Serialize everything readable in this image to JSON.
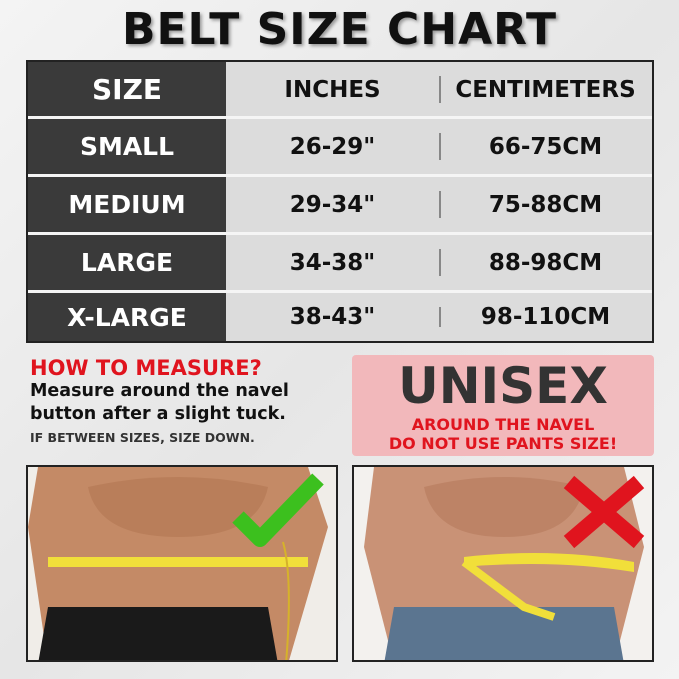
{
  "title": "BELT SIZE CHART",
  "table": {
    "headers": [
      "SIZE",
      "INCHES",
      "CENTIMETERS"
    ],
    "rows": [
      {
        "size": "SMALL",
        "inches": "26-29\"",
        "cm": "66-75CM"
      },
      {
        "size": "MEDIUM",
        "inches": "29-34\"",
        "cm": "75-88CM"
      },
      {
        "size": "LARGE",
        "inches": "34-38\"",
        "cm": "88-98CM"
      },
      {
        "size": "X-LARGE",
        "inches": "38-43\"",
        "cm": "98-110CM"
      }
    ]
  },
  "how_to": {
    "heading": "HOW TO MEASURE?",
    "body_line1": "Measure around the navel",
    "body_line2": "button after a slight tuck.",
    "note": "IF BETWEEN SIZES, SIZE DOWN."
  },
  "unisex": {
    "title": "UNISEX",
    "line1": "AROUND THE NAVEL",
    "line2": "DO NOT USE PANTS SIZE!"
  },
  "photos": [
    {
      "icon": "check-icon",
      "color": "#3cc01e"
    },
    {
      "icon": "cross-icon",
      "color": "#e0141e"
    }
  ],
  "colors": {
    "red": "#e0141e",
    "dark": "#3a3a3a",
    "pink": "#f2b8bb"
  }
}
